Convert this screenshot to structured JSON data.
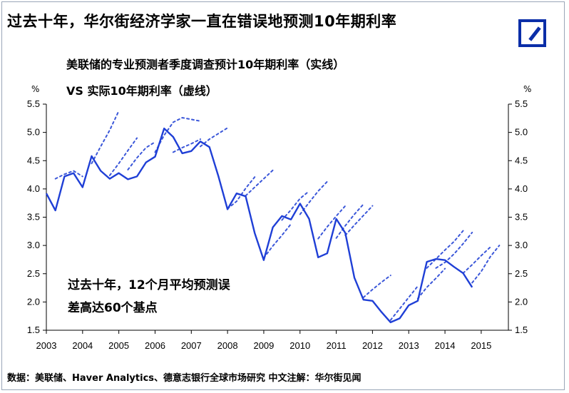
{
  "header": {
    "title": "过去十年，华尔街经济学家一直在错误地预测10年期利率",
    "logo_icon": "deutsche-bank-logo"
  },
  "subtitle": {
    "line1": "美联储的专业预测者季度调查预计10年期利率（实线）",
    "line2": "VS 实际10年期利率（虚线）"
  },
  "annotation": {
    "line1": "过去十年，12个月平均预测误",
    "line2": "差高达60个基点"
  },
  "source": "数据：美联储、Haver Analytics、德意志银行全球市场研究   中文注解：华尔街见闻",
  "colors": {
    "actual": "#1f3fd6",
    "forecast": "#3b57d9",
    "logo": "#0b2ea8"
  },
  "chart_data": {
    "type": "line",
    "title": "过去十年，华尔街经济学家一直在错误地预测10年期利率",
    "ylabel_left": "%",
    "ylabel_right": "%",
    "ylim": [
      1.5,
      5.5
    ],
    "y_ticks": [
      "1.5",
      "2.0",
      "2.5",
      "3.0",
      "3.5",
      "4.0",
      "4.5",
      "5.0",
      "5.5"
    ],
    "xlim": [
      2003.0,
      2015.75
    ],
    "x_ticks": [
      "2003",
      "2004",
      "2005",
      "2006",
      "2007",
      "2008",
      "2009",
      "2010",
      "2011",
      "2012",
      "2013",
      "2014",
      "2015"
    ],
    "grid": false,
    "series": [
      {
        "style": "solid",
        "points": [
          [
            2003.0,
            3.92
          ],
          [
            2003.25,
            3.62
          ],
          [
            2003.5,
            4.22
          ],
          [
            2003.75,
            4.28
          ],
          [
            2004.0,
            4.03
          ],
          [
            2004.25,
            4.58
          ],
          [
            2004.5,
            4.32
          ],
          [
            2004.75,
            4.18
          ],
          [
            2005.0,
            4.28
          ],
          [
            2005.25,
            4.17
          ],
          [
            2005.5,
            4.22
          ],
          [
            2005.75,
            4.47
          ],
          [
            2006.0,
            4.57
          ],
          [
            2006.25,
            5.07
          ],
          [
            2006.5,
            4.92
          ],
          [
            2006.75,
            4.63
          ],
          [
            2007.0,
            4.67
          ],
          [
            2007.25,
            4.84
          ],
          [
            2007.5,
            4.74
          ],
          [
            2007.75,
            4.22
          ],
          [
            2008.0,
            3.64
          ],
          [
            2008.25,
            3.92
          ],
          [
            2008.5,
            3.87
          ],
          [
            2008.75,
            3.22
          ],
          [
            2009.0,
            2.74
          ],
          [
            2009.25,
            3.32
          ],
          [
            2009.5,
            3.52
          ],
          [
            2009.75,
            3.46
          ],
          [
            2010.0,
            3.74
          ],
          [
            2010.25,
            3.47
          ],
          [
            2010.5,
            2.79
          ],
          [
            2010.75,
            2.86
          ],
          [
            2011.0,
            3.47
          ],
          [
            2011.25,
            3.22
          ],
          [
            2011.5,
            2.43
          ],
          [
            2011.75,
            2.04
          ],
          [
            2012.0,
            2.02
          ],
          [
            2012.25,
            1.82
          ],
          [
            2012.5,
            1.64
          ],
          [
            2012.75,
            1.71
          ],
          [
            2013.0,
            1.94
          ],
          [
            2013.25,
            2.02
          ],
          [
            2013.5,
            2.71
          ],
          [
            2013.75,
            2.76
          ],
          [
            2014.0,
            2.74
          ],
          [
            2014.25,
            2.62
          ],
          [
            2014.5,
            2.51
          ],
          [
            2014.75,
            2.26
          ]
        ]
      },
      {
        "style": "dotted",
        "segments": [
          [
            [
              2003.25,
              4.18
            ],
            [
              2003.5,
              4.26
            ],
            [
              2003.75,
              4.32
            ],
            [
              2004.0,
              4.22
            ]
          ],
          [
            [
              2004.25,
              4.45
            ],
            [
              2004.5,
              4.75
            ],
            [
              2004.75,
              5.04
            ],
            [
              2005.0,
              5.38
            ]
          ],
          [
            [
              2004.75,
              4.24
            ],
            [
              2005.0,
              4.45
            ],
            [
              2005.25,
              4.68
            ],
            [
              2005.5,
              4.9
            ]
          ],
          [
            [
              2005.25,
              4.34
            ],
            [
              2005.5,
              4.55
            ],
            [
              2005.75,
              4.73
            ],
            [
              2006.0,
              4.83
            ]
          ],
          [
            [
              2006.0,
              4.65
            ],
            [
              2006.25,
              4.95
            ],
            [
              2006.5,
              5.18
            ],
            [
              2006.75,
              5.26
            ],
            [
              2007.25,
              5.2
            ]
          ],
          [
            [
              2006.5,
              4.65
            ],
            [
              2006.75,
              4.73
            ],
            [
              2007.0,
              4.8
            ],
            [
              2007.25,
              4.88
            ]
          ],
          [
            [
              2007.25,
              4.75
            ],
            [
              2007.5,
              4.88
            ],
            [
              2007.75,
              4.98
            ],
            [
              2008.0,
              5.08
            ]
          ],
          [
            [
              2008.0,
              3.65
            ],
            [
              2008.25,
              3.78
            ],
            [
              2008.5,
              4.01
            ],
            [
              2008.75,
              4.21
            ]
          ],
          [
            [
              2008.5,
              3.88
            ],
            [
              2008.75,
              4.03
            ],
            [
              2009.0,
              4.18
            ],
            [
              2009.25,
              4.33
            ]
          ],
          [
            [
              2009.0,
              2.78
            ],
            [
              2009.25,
              2.99
            ],
            [
              2009.5,
              3.18
            ],
            [
              2009.75,
              3.38
            ]
          ],
          [
            [
              2009.5,
              3.45
            ],
            [
              2009.75,
              3.63
            ],
            [
              2010.0,
              3.83
            ],
            [
              2010.25,
              3.96
            ]
          ],
          [
            [
              2010.0,
              3.55
            ],
            [
              2010.25,
              3.76
            ],
            [
              2010.5,
              3.96
            ],
            [
              2010.75,
              4.13
            ]
          ],
          [
            [
              2010.5,
              3.12
            ],
            [
              2010.75,
              3.33
            ],
            [
              2011.0,
              3.52
            ],
            [
              2011.25,
              3.7
            ]
          ],
          [
            [
              2011.0,
              3.13
            ],
            [
              2011.25,
              3.35
            ],
            [
              2011.5,
              3.55
            ],
            [
              2011.75,
              3.73
            ]
          ],
          [
            [
              2011.25,
              3.18
            ],
            [
              2011.5,
              3.36
            ],
            [
              2011.75,
              3.53
            ],
            [
              2012.0,
              3.7
            ]
          ],
          [
            [
              2011.75,
              2.08
            ],
            [
              2012.0,
              2.22
            ],
            [
              2012.25,
              2.35
            ],
            [
              2012.5,
              2.47
            ]
          ],
          [
            [
              2012.5,
              1.68
            ],
            [
              2012.75,
              1.88
            ],
            [
              2013.0,
              2.08
            ],
            [
              2013.25,
              2.28
            ]
          ],
          [
            [
              2013.25,
              2.06
            ],
            [
              2013.5,
              2.26
            ],
            [
              2013.75,
              2.42
            ],
            [
              2014.0,
              2.59
            ]
          ],
          [
            [
              2013.5,
              2.6
            ],
            [
              2013.75,
              2.76
            ],
            [
              2014.0,
              2.92
            ],
            [
              2014.25,
              3.07
            ],
            [
              2014.5,
              3.26
            ]
          ],
          [
            [
              2013.75,
              2.6
            ],
            [
              2014.0,
              2.7
            ],
            [
              2014.25,
              2.85
            ],
            [
              2014.5,
              3.03
            ],
            [
              2014.75,
              3.23
            ]
          ],
          [
            [
              2014.5,
              2.51
            ],
            [
              2014.75,
              2.66
            ],
            [
              2015.0,
              2.82
            ],
            [
              2015.25,
              2.97
            ]
          ],
          [
            [
              2014.75,
              2.34
            ],
            [
              2015.0,
              2.54
            ],
            [
              2015.25,
              2.8
            ],
            [
              2015.5,
              3.0
            ]
          ]
        ]
      }
    ]
  }
}
